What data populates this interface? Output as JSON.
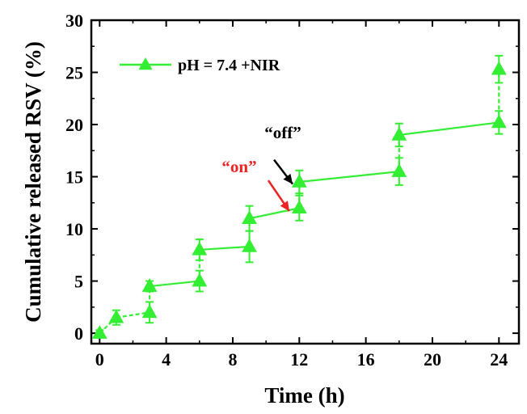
{
  "chart_data": {
    "type": "line",
    "xlabel": "Time (h)",
    "ylabel": "Cumulative released RSV (%)",
    "xlim": [
      -0.5,
      25.2
    ],
    "ylim": [
      -1,
      30
    ],
    "xticks": [
      0,
      4,
      8,
      12,
      16,
      20,
      24
    ],
    "yticks": [
      0,
      5,
      10,
      15,
      20,
      25,
      30
    ],
    "grid": false,
    "legend_position": "top-left",
    "series": [
      {
        "name": "pH = 7.4 +NIR",
        "color": "#33ee33",
        "marker": "triangle-up",
        "points": [
          {
            "x": 0,
            "y": 0,
            "err": 0.3
          },
          {
            "x": 1,
            "y": 1.5,
            "err": 0.7
          },
          {
            "x": 3,
            "y": 2.0,
            "err": 1.0
          },
          {
            "x": 3,
            "y": 4.5,
            "err": 0.5
          },
          {
            "x": 6,
            "y": 5.0,
            "err": 1.0
          },
          {
            "x": 6,
            "y": 8.0,
            "err": 1.0
          },
          {
            "x": 9,
            "y": 8.3,
            "err": 1.5
          },
          {
            "x": 9,
            "y": 11.0,
            "err": 1.2
          },
          {
            "x": 12,
            "y": 12.0,
            "err": 1.2
          },
          {
            "x": 12,
            "y": 14.5,
            "err": 1.1
          },
          {
            "x": 18,
            "y": 15.5,
            "err": 1.3
          },
          {
            "x": 18,
            "y": 19.0,
            "err": 1.1
          },
          {
            "x": 24,
            "y": 20.2,
            "err": 1.1
          },
          {
            "x": 24,
            "y": 25.3,
            "err": 1.3
          }
        ]
      }
    ],
    "annotations": [
      {
        "text": "“on”",
        "color": "#ee2222",
        "arrow_color": "#ee2222",
        "points_to": {
          "x": 11.4,
          "y": 11.7
        }
      },
      {
        "text": "“off”",
        "color": "#000000",
        "arrow_color": "#000000",
        "points_to": {
          "x": 11.6,
          "y": 14.3
        }
      }
    ]
  }
}
